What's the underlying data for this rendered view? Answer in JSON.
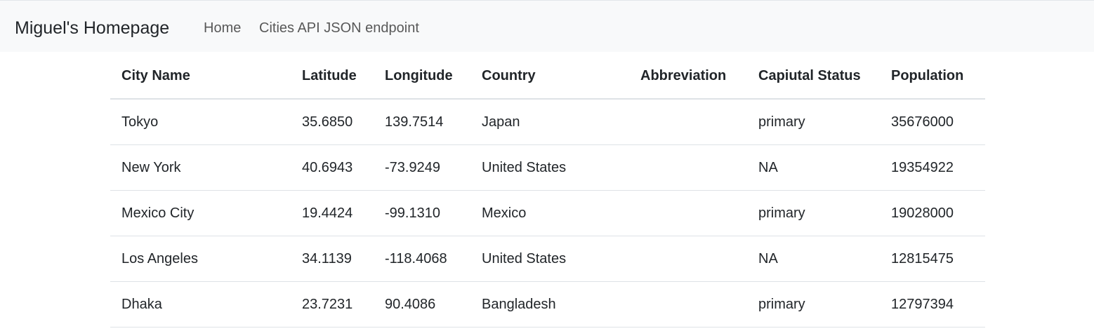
{
  "navbar": {
    "brand": "Miguel's Homepage",
    "links": [
      "Home",
      "Cities API JSON endpoint"
    ]
  },
  "table": {
    "headers": [
      "City Name",
      "Latitude",
      "Longitude",
      "Country",
      "Abbreviation",
      "Capiutal Status",
      "Population"
    ],
    "rows": [
      [
        "Tokyo",
        "35.6850",
        "139.7514",
        "Japan",
        "",
        "primary",
        "35676000"
      ],
      [
        "New York",
        "40.6943",
        "-73.9249",
        "United States",
        "",
        "NA",
        "19354922"
      ],
      [
        "Mexico City",
        "19.4424",
        "-99.1310",
        "Mexico",
        "",
        "primary",
        "19028000"
      ],
      [
        "Los Angeles",
        "34.1139",
        "-118.4068",
        "United States",
        "",
        "NA",
        "12815475"
      ],
      [
        "Dhaka",
        "23.7231",
        "90.4086",
        "Bangladesh",
        "",
        "primary",
        "12797394"
      ]
    ]
  }
}
